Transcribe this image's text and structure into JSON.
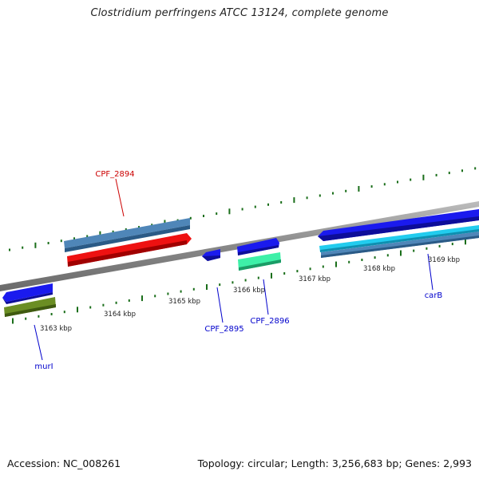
{
  "title": "Clostridium perfringens ATCC 13124, complete genome",
  "footer": {
    "accession": "Accession: NC_008261",
    "summary": "Topology: circular; Length: 3,256,683 bp; Genes: 2,993"
  },
  "ruler": {
    "unit": "kbp",
    "ticks": [
      {
        "kbp": 3163,
        "label": "3163 kbp"
      },
      {
        "kbp": 3164,
        "label": "3164 kbp"
      },
      {
        "kbp": 3165,
        "label": "3165 kbp"
      },
      {
        "kbp": 3166,
        "label": "3166 kbp"
      },
      {
        "kbp": 3167,
        "label": "3167 kbp"
      },
      {
        "kbp": 3168,
        "label": "3168 kbp"
      },
      {
        "kbp": 3169,
        "label": "3169 kbp"
      }
    ]
  },
  "features": [
    {
      "label": "murI",
      "strand": "-",
      "color": "#1a1aee"
    },
    {
      "label": "",
      "strand": "-",
      "color": "#6b8e23"
    },
    {
      "label": "CPF_2894",
      "strand": "+",
      "color": "#4f86b8"
    },
    {
      "label": "",
      "strand": "+",
      "color": "#ee1111"
    },
    {
      "label": "CPF_2895",
      "strand": "-",
      "color": "#1a1aee"
    },
    {
      "label": "CPF_2896",
      "strand": "+",
      "color": "#1a1aee"
    },
    {
      "label": "",
      "strand": "+",
      "color": "#3ef0a8"
    },
    {
      "label": "carB",
      "strand": "-",
      "color": "#1a1aee"
    },
    {
      "label": "",
      "strand": "+",
      "color": "#22ccee"
    },
    {
      "label": "",
      "strand": "+",
      "color": "#4f86b8"
    }
  ],
  "colors": {
    "backbone": "#8c8c8c",
    "tick_marks": "#1a6e1a",
    "label_red": "#cc0000",
    "label_blue": "#0000cc"
  }
}
